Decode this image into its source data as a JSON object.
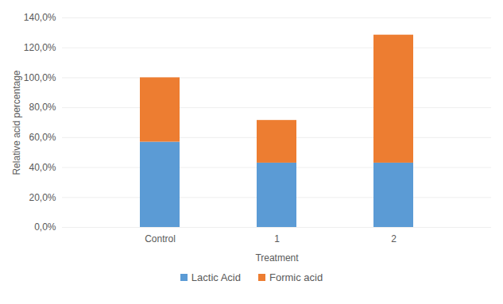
{
  "chart_data": {
    "type": "bar",
    "stacked": true,
    "grid": true,
    "legend": "bottom",
    "x_label": "Treatment",
    "y_label": "Relative acid percentage",
    "categories": [
      "Control",
      "1",
      "2"
    ],
    "series": [
      {
        "name": "Lactic Acid",
        "color": "#5b9bd5",
        "values": [
          57,
          43,
          43
        ]
      },
      {
        "name": "Formic acid",
        "color": "#ed7d31",
        "values": [
          43,
          28.5,
          85.5
        ]
      }
    ],
    "ylim": [
      0,
      140
    ],
    "yticks": [
      {
        "value": 0,
        "label": "0,0%"
      },
      {
        "value": 20,
        "label": "20,0%"
      },
      {
        "value": 40,
        "label": "40,0%"
      },
      {
        "value": 60,
        "label": "60,0%"
      },
      {
        "value": 80,
        "label": "80,0%"
      },
      {
        "value": 100,
        "label": "100,0%"
      },
      {
        "value": 120,
        "label": "120,0%"
      },
      {
        "value": 140,
        "label": "140,0%"
      }
    ]
  }
}
